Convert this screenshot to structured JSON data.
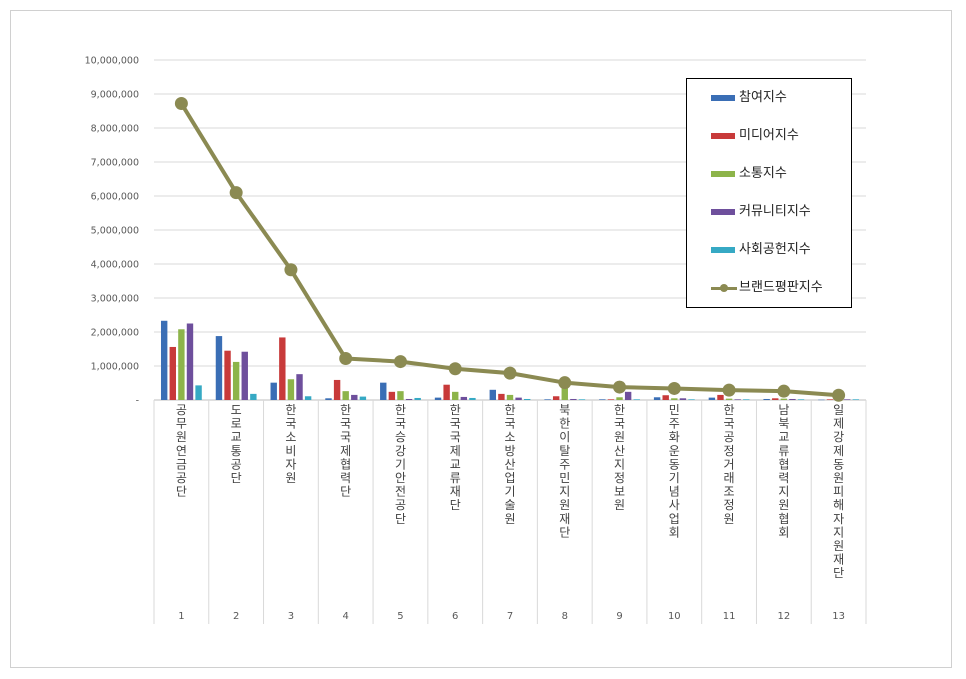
{
  "chart_data": {
    "type": "bar",
    "categories": [
      "1",
      "2",
      "3",
      "4",
      "5",
      "6",
      "7",
      "8",
      "9",
      "10",
      "11",
      "12",
      "13"
    ],
    "category_names": [
      "공무원연금공단",
      "도로교통공단",
      "한국소비자원",
      "한국국제협력단",
      "한국승강기안전공단",
      "한국국제교류재단",
      "한국소방산업기술원",
      "북한이탈주민지원재단",
      "한국원산지정보원",
      "민주화운동기념사업회",
      "한국공정거래조정원",
      "남북교류협력지원협회",
      "일제강제동원피해자지원재단"
    ],
    "ylim": [
      0,
      10000000
    ],
    "y_ticks": [
      "-",
      "1,000,000",
      "2,000,000",
      "3,000,000",
      "4,000,000",
      "5,000,000",
      "6,000,000",
      "7,000,000",
      "8,000,000",
      "9,000,000",
      "10,000,000"
    ],
    "grid": true,
    "legend_position": "top-right",
    "series": [
      {
        "name": "참여지수",
        "color": "#3a6eb5",
        "values": [
          2330000,
          1880000,
          510000,
          50000,
          510000,
          70000,
          300000,
          20000,
          20000,
          80000,
          70000,
          30000,
          10000
        ]
      },
      {
        "name": "미디어지수",
        "color": "#c83a3a",
        "values": [
          1560000,
          1450000,
          1840000,
          590000,
          240000,
          450000,
          180000,
          110000,
          20000,
          140000,
          150000,
          50000,
          20000
        ]
      },
      {
        "name": "소통지수",
        "color": "#8db44a",
        "values": [
          2080000,
          1120000,
          610000,
          260000,
          260000,
          240000,
          150000,
          420000,
          80000,
          50000,
          40000,
          40000,
          10000
        ]
      },
      {
        "name": "커뮤니티지수",
        "color": "#6e4f9c",
        "values": [
          2250000,
          1420000,
          760000,
          150000,
          30000,
          90000,
          70000,
          30000,
          240000,
          50000,
          20000,
          30000,
          20000
        ]
      },
      {
        "name": "사회공헌지수",
        "color": "#36a9c4",
        "values": [
          430000,
          180000,
          110000,
          100000,
          60000,
          60000,
          30000,
          20000,
          20000,
          20000,
          20000,
          20000,
          20000
        ]
      },
      {
        "name": "브랜드평판지수",
        "color": "#8b8a52",
        "type": "line",
        "values": [
          8720000,
          6100000,
          3830000,
          1220000,
          1130000,
          920000,
          790000,
          510000,
          380000,
          340000,
          290000,
          260000,
          140000
        ]
      }
    ]
  }
}
